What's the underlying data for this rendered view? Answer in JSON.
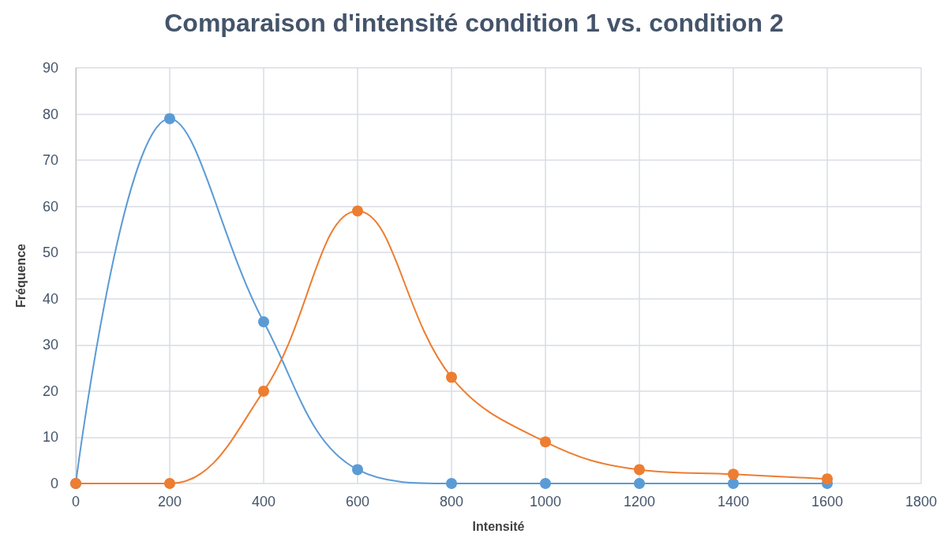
{
  "chart_data": {
    "type": "line",
    "title": "Comparaison d'intensité condition 1 vs. condition 2",
    "xlabel": "Intensité",
    "ylabel": "Fréquence",
    "x": [
      0,
      200,
      400,
      600,
      800,
      1000,
      1200,
      1400,
      1600
    ],
    "series": [
      {
        "color": "#5b9bd5",
        "values": [
          0,
          79,
          35,
          3,
          0,
          0,
          0,
          0,
          0
        ]
      },
      {
        "color": "#ed7d31",
        "values": [
          0,
          0,
          20,
          59,
          23,
          9,
          3,
          2,
          1
        ]
      }
    ],
    "xlim": [
      0,
      1800
    ],
    "xticks": [
      0,
      200,
      400,
      600,
      800,
      1000,
      1200,
      1400,
      1600,
      1800
    ],
    "ylim": [
      0,
      90
    ],
    "yticks": [
      0,
      10,
      20,
      30,
      40,
      50,
      60,
      70,
      80,
      90
    ],
    "grid": true,
    "marker": "circle",
    "line_style": "solid"
  }
}
